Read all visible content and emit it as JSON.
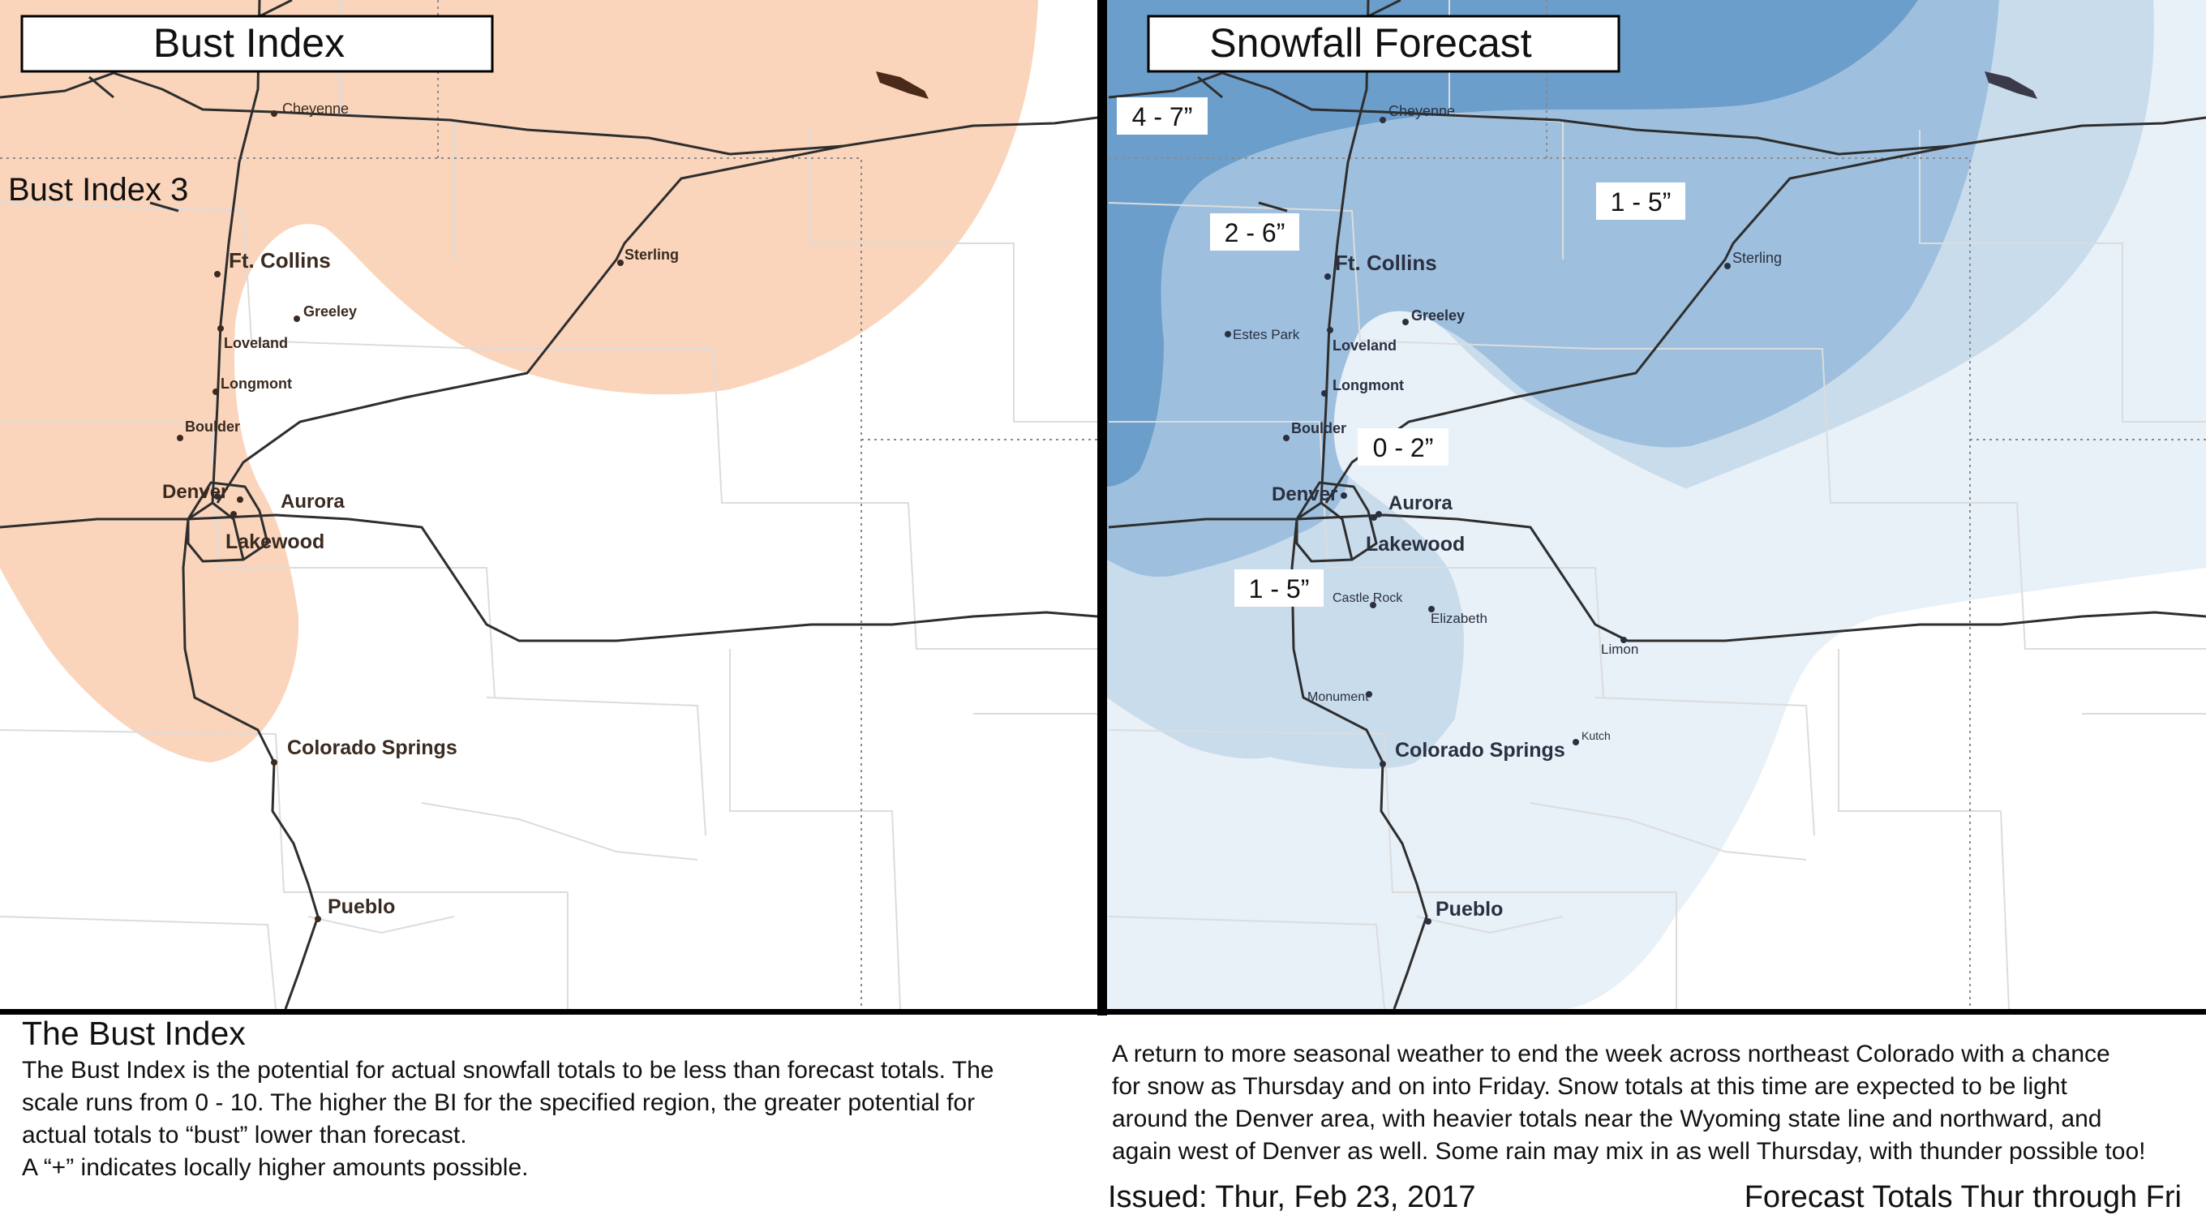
{
  "left_panel": {
    "title": "Bust Index",
    "region_label": "Bust Index 3",
    "colors": {
      "bust_fill": "#FAD5BC",
      "road": "#2e2e2e",
      "county": "#d8d8d8"
    }
  },
  "right_panel": {
    "title": "Snowfall Forecast",
    "zones": [
      {
        "label": "4 - 7”",
        "color": "#6B9ECB"
      },
      {
        "label": "2 - 6”",
        "color": "#9EC0DE"
      },
      {
        "label": "1 - 5”",
        "color": "#C9DCEC"
      },
      {
        "label": "1 - 5”",
        "color": "#C9DCEC"
      },
      {
        "label": "0 - 2”",
        "color": "#E8F0F8"
      }
    ]
  },
  "cities_left": [
    {
      "name": "Cheyenne"
    },
    {
      "name": "Ft. Collins"
    },
    {
      "name": "Greeley"
    },
    {
      "name": "Sterling"
    },
    {
      "name": "Loveland"
    },
    {
      "name": "Longmont"
    },
    {
      "name": "Boulder"
    },
    {
      "name": "Denver"
    },
    {
      "name": "Aurora"
    },
    {
      "name": "Lakewood"
    },
    {
      "name": "Colorado Springs"
    },
    {
      "name": "Pueblo"
    }
  ],
  "cities_right": [
    {
      "name": "Cheyenne"
    },
    {
      "name": "Ft. Collins"
    },
    {
      "name": "Greeley"
    },
    {
      "name": "Sterling"
    },
    {
      "name": "Estes Park"
    },
    {
      "name": "Loveland"
    },
    {
      "name": "Longmont"
    },
    {
      "name": "Boulder"
    },
    {
      "name": "Denver"
    },
    {
      "name": "Aurora"
    },
    {
      "name": "Lakewood"
    },
    {
      "name": "Castle Rock"
    },
    {
      "name": "Elizabeth"
    },
    {
      "name": "Limon"
    },
    {
      "name": "Monument"
    },
    {
      "name": "Kutch"
    },
    {
      "name": "Colorado Springs"
    },
    {
      "name": "Pueblo"
    }
  ],
  "bust_info": {
    "heading": "The Bust Index",
    "line1": "The Bust Index is the potential for actual snowfall totals to be less than forecast totals. The",
    "line2": "scale runs from 0 - 10. The higher the BI for the specified region, the greater potential for",
    "line3": "actual totals to “bust” lower than forecast.",
    "line4": "A “+” indicates locally higher amounts possible."
  },
  "forecast_info": {
    "line1": "A return to more seasonal weather to end the week across northeast Colorado with a chance",
    "line2": "for snow as Thursday and on into Friday.  Snow totals at this time are expected to be light",
    "line3": "around the Denver area, with heavier totals near the Wyoming state line and northward, and",
    "line4": "again west of Denver as well. Some rain may mix in as well Thursday, with thunder possible too!",
    "issued": "Issued: Thur, Feb 23, 2017",
    "totals_note": "Forecast Totals Thur through Fri"
  }
}
